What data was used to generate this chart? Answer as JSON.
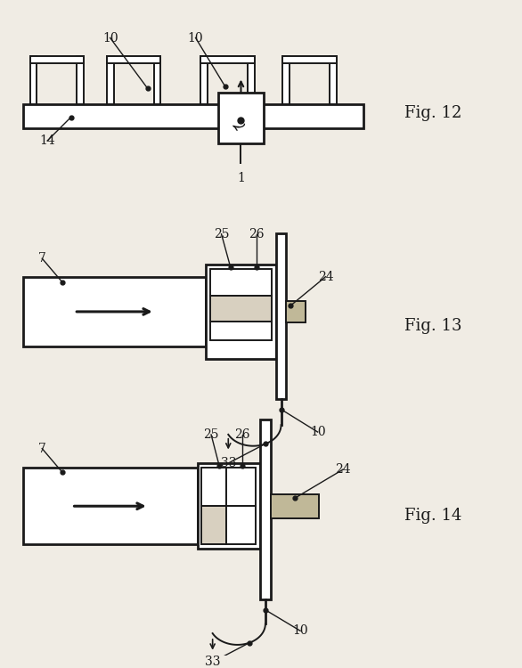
{
  "bg_color": "#f0ece4",
  "line_color": "#1a1a1a",
  "lw": 1.4,
  "tlw": 2.0,
  "fill_light": "#d8d0c0",
  "fill_gray": "#c0b898",
  "fig12_label": "Fig. 12",
  "fig13_label": "Fig. 13",
  "fig14_label": "Fig. 14"
}
